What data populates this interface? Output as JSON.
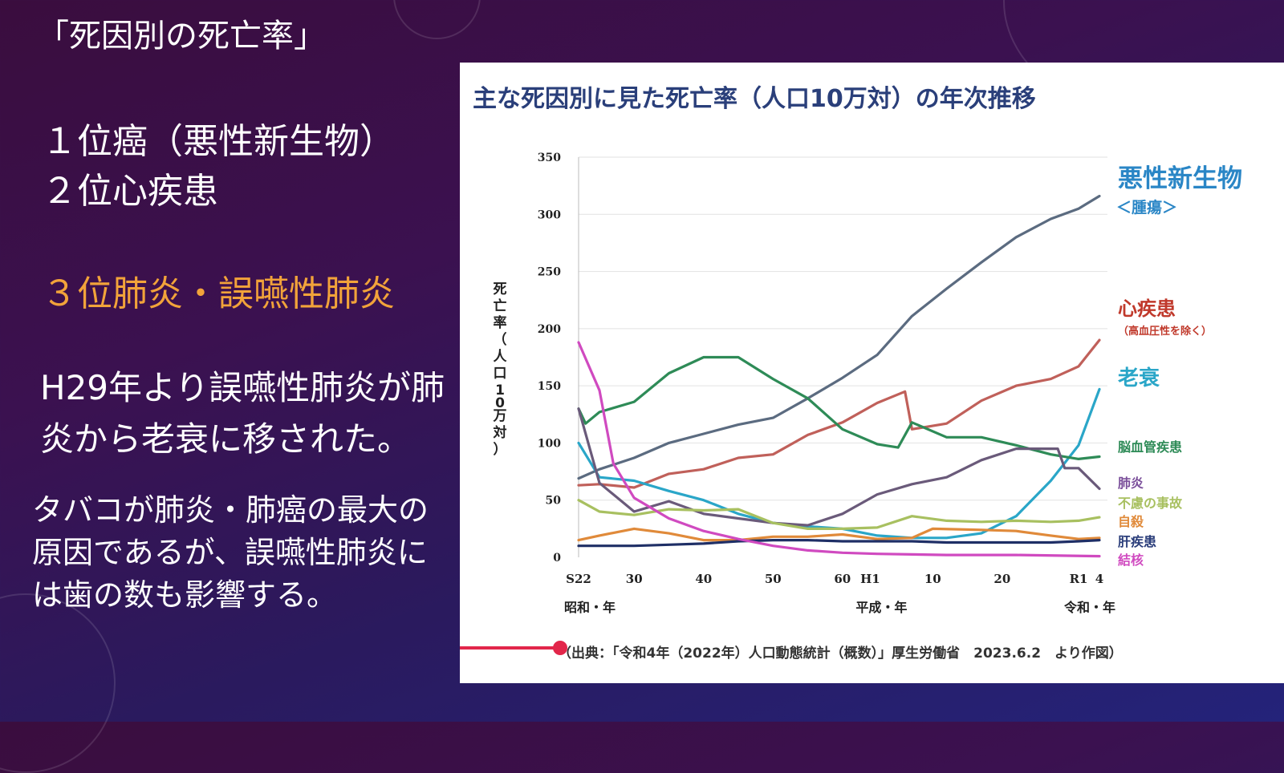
{
  "left": {
    "title": "「死因別の死亡率」",
    "line1": "１位癌（悪性新生物）",
    "line2": "２位心疾患",
    "line3": "３位肺炎・誤嚥性肺炎",
    "para1": "H29年より誤嚥性肺炎が肺炎から老衰に移された。",
    "para2": "タバコが肺炎・肺癌の最大の原因であるが、誤嚥性肺炎には歯の数も影響する。"
  },
  "video": {
    "progress": 0.08
  },
  "chart_data": {
    "type": "line",
    "title": "主な死因別に見た死亡率（人口10万対）の年次推移",
    "ylabel": "死亡率（人口10万対）",
    "ylim": [
      0,
      350
    ],
    "yticks": [
      0,
      50,
      100,
      150,
      200,
      250,
      300,
      350
    ],
    "xlim": [
      1947,
      2022
    ],
    "xticks": [
      {
        "year": 1947,
        "label": "S22"
      },
      {
        "year": 1955,
        "label": "30"
      },
      {
        "year": 1965,
        "label": "40"
      },
      {
        "year": 1975,
        "label": "50"
      },
      {
        "year": 1985,
        "label": "60"
      },
      {
        "year": 1989,
        "label": "H1"
      },
      {
        "year": 1998,
        "label": "10"
      },
      {
        "year": 2008,
        "label": "20"
      },
      {
        "year": 2019,
        "label": "R1"
      },
      {
        "year": 2022,
        "label": "4"
      }
    ],
    "era_labels": [
      {
        "year": 1947,
        "label": "昭和・年"
      },
      {
        "year": 1989,
        "label": "平成・年"
      },
      {
        "year": 2019,
        "label": "令和・年"
      }
    ],
    "source": "（出典：「令和4年（2022年）人口動態統計（概数）」厚生労働省　2023.6.2　より作図）",
    "grid": true,
    "series": [
      {
        "name": "悪性新生物",
        "sublabel": "＜腫瘍＞",
        "color": "#5b6b80",
        "label_color": "#2a86c6",
        "points": [
          [
            1947,
            69
          ],
          [
            1950,
            77
          ],
          [
            1955,
            87
          ],
          [
            1960,
            100
          ],
          [
            1965,
            108
          ],
          [
            1970,
            116
          ],
          [
            1975,
            122
          ],
          [
            1980,
            139
          ],
          [
            1985,
            157
          ],
          [
            1990,
            177
          ],
          [
            1995,
            211
          ],
          [
            2000,
            235
          ],
          [
            2005,
            258
          ],
          [
            2010,
            280
          ],
          [
            2015,
            296
          ],
          [
            2019,
            305
          ],
          [
            2022,
            316
          ]
        ]
      },
      {
        "name": "心疾患",
        "sublabel": "（高血圧性を除く）",
        "color": "#c0605a",
        "label_color": "#c0392b",
        "points": [
          [
            1947,
            63
          ],
          [
            1950,
            64
          ],
          [
            1955,
            61
          ],
          [
            1960,
            73
          ],
          [
            1965,
            77
          ],
          [
            1970,
            87
          ],
          [
            1975,
            90
          ],
          [
            1980,
            107
          ],
          [
            1985,
            118
          ],
          [
            1990,
            135
          ],
          [
            1994,
            145
          ],
          [
            1995,
            112
          ],
          [
            2000,
            117
          ],
          [
            2005,
            137
          ],
          [
            2010,
            150
          ],
          [
            2015,
            156
          ],
          [
            2019,
            167
          ],
          [
            2022,
            190
          ]
        ]
      },
      {
        "name": "老衰",
        "color": "#2aa6c8",
        "label_color": "#2aa6c8",
        "points": [
          [
            1947,
            100
          ],
          [
            1950,
            70
          ],
          [
            1955,
            67
          ],
          [
            1960,
            58
          ],
          [
            1965,
            50
          ],
          [
            1970,
            38
          ],
          [
            1975,
            30
          ],
          [
            1980,
            27
          ],
          [
            1985,
            25
          ],
          [
            1990,
            19
          ],
          [
            1995,
            17
          ],
          [
            2000,
            17
          ],
          [
            2005,
            21
          ],
          [
            2010,
            36
          ],
          [
            2015,
            67
          ],
          [
            2019,
            98
          ],
          [
            2022,
            147
          ]
        ]
      },
      {
        "name": "脳血管疾患",
        "color": "#2e8b57",
        "label_color": "#2e8b57",
        "points": [
          [
            1947,
            130
          ],
          [
            1948,
            117
          ],
          [
            1950,
            127
          ],
          [
            1955,
            136
          ],
          [
            1960,
            161
          ],
          [
            1965,
            175
          ],
          [
            1970,
            175
          ],
          [
            1975,
            156
          ],
          [
            1980,
            139
          ],
          [
            1985,
            112
          ],
          [
            1990,
            99
          ],
          [
            1993,
            96
          ],
          [
            1995,
            118
          ],
          [
            2000,
            105
          ],
          [
            2005,
            105
          ],
          [
            2010,
            98
          ],
          [
            2015,
            90
          ],
          [
            2019,
            86
          ],
          [
            2022,
            88
          ]
        ]
      },
      {
        "name": "肺炎",
        "color": "#6a5a7a",
        "label_color": "#7a4e9a",
        "points": [
          [
            1947,
            130
          ],
          [
            1950,
            65
          ],
          [
            1955,
            40
          ],
          [
            1960,
            49
          ],
          [
            1965,
            38
          ],
          [
            1970,
            34
          ],
          [
            1975,
            30
          ],
          [
            1980,
            28
          ],
          [
            1985,
            38
          ],
          [
            1990,
            55
          ],
          [
            1995,
            64
          ],
          [
            2000,
            70
          ],
          [
            2005,
            85
          ],
          [
            2010,
            95
          ],
          [
            2016,
            95
          ],
          [
            2017,
            78
          ],
          [
            2019,
            78
          ],
          [
            2022,
            60
          ]
        ]
      },
      {
        "name": "不慮の事故",
        "color": "#a8c060",
        "label_color": "#a8c060",
        "points": [
          [
            1947,
            50
          ],
          [
            1950,
            40
          ],
          [
            1955,
            37
          ],
          [
            1960,
            42
          ],
          [
            1965,
            41
          ],
          [
            1970,
            42
          ],
          [
            1975,
            30
          ],
          [
            1980,
            25
          ],
          [
            1985,
            25
          ],
          [
            1990,
            26
          ],
          [
            1995,
            36
          ],
          [
            2000,
            32
          ],
          [
            2005,
            31
          ],
          [
            2010,
            32
          ],
          [
            2015,
            31
          ],
          [
            2019,
            32
          ],
          [
            2022,
            35
          ]
        ]
      },
      {
        "name": "自殺",
        "color": "#e08a3a",
        "label_color": "#e08a3a",
        "points": [
          [
            1947,
            15
          ],
          [
            1950,
            19
          ],
          [
            1955,
            25
          ],
          [
            1960,
            21
          ],
          [
            1965,
            15
          ],
          [
            1970,
            15
          ],
          [
            1975,
            18
          ],
          [
            1980,
            18
          ],
          [
            1985,
            20
          ],
          [
            1990,
            16
          ],
          [
            1995,
            17
          ],
          [
            1998,
            25
          ],
          [
            2005,
            24
          ],
          [
            2010,
            23
          ],
          [
            2015,
            19
          ],
          [
            2019,
            16
          ],
          [
            2022,
            17
          ]
        ]
      },
      {
        "name": "肝疾患",
        "color": "#1f2f66",
        "label_color": "#2a3d7a",
        "points": [
          [
            1947,
            10
          ],
          [
            1950,
            10
          ],
          [
            1955,
            10
          ],
          [
            1960,
            11
          ],
          [
            1965,
            12
          ],
          [
            1970,
            14
          ],
          [
            1975,
            15
          ],
          [
            1980,
            15
          ],
          [
            1985,
            14
          ],
          [
            1990,
            14
          ],
          [
            1995,
            14
          ],
          [
            2000,
            13
          ],
          [
            2005,
            13
          ],
          [
            2010,
            13
          ],
          [
            2015,
            13
          ],
          [
            2019,
            14
          ],
          [
            2022,
            15
          ]
        ]
      },
      {
        "name": "結核",
        "color": "#d04ac0",
        "label_color": "#d04ac0",
        "points": [
          [
            1947,
            188
          ],
          [
            1950,
            146
          ],
          [
            1952,
            82
          ],
          [
            1955,
            52
          ],
          [
            1960,
            34
          ],
          [
            1965,
            23
          ],
          [
            1970,
            16
          ],
          [
            1975,
            10
          ],
          [
            1980,
            6
          ],
          [
            1985,
            4
          ],
          [
            1990,
            3
          ],
          [
            2000,
            2
          ],
          [
            2010,
            2
          ],
          [
            2022,
            1
          ]
        ]
      }
    ]
  }
}
